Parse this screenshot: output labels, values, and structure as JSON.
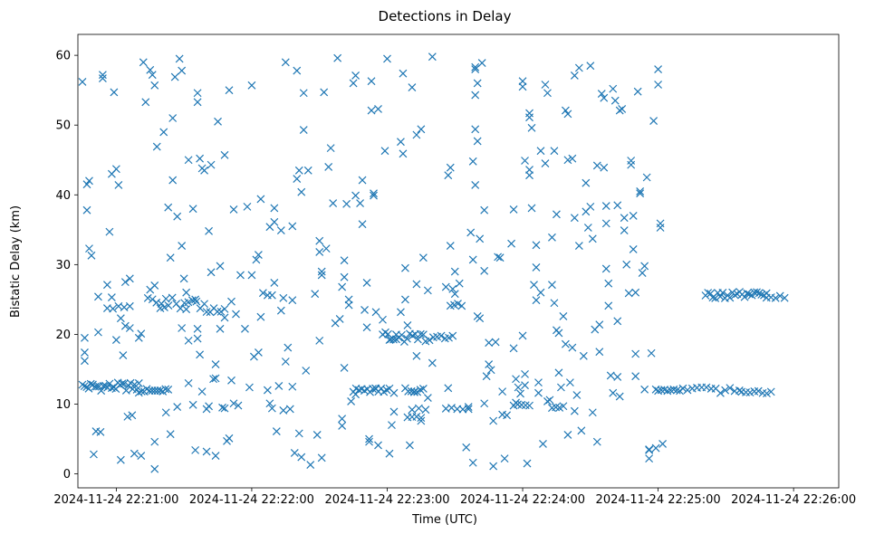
{
  "chart_data": {
    "type": "scatter",
    "title": "Detections in Delay",
    "xlabel": "Time (UTC)",
    "ylabel": "Bistatic Delay (km)",
    "marker": "x",
    "color": "#1f77b4",
    "x_unit": "seconds since 2024-11-24 22:20:00 UTC",
    "xlim": [
      43,
      380
    ],
    "ylim": [
      -2,
      63
    ],
    "xticks": [
      {
        "value": 60,
        "label": "2024-11-24 22:21:00"
      },
      {
        "value": 120,
        "label": "2024-11-24 22:22:00"
      },
      {
        "value": 180,
        "label": "2024-11-24 22:23:00"
      },
      {
        "value": 240,
        "label": "2024-11-24 22:24:00"
      },
      {
        "value": 300,
        "label": "2024-11-24 22:25:00"
      },
      {
        "value": 360,
        "label": "2024-11-24 22:26:00"
      }
    ],
    "yticks": [
      0,
      10,
      20,
      30,
      40,
      50,
      60
    ],
    "bands": [
      {
        "t0": 45,
        "t1": 70,
        "y": 12.5,
        "n": 28,
        "spread": 0.6
      },
      {
        "t0": 70,
        "t1": 83,
        "y": 11.9,
        "n": 12,
        "spread": 0.3
      },
      {
        "t0": 56,
        "t1": 66,
        "y": 23.8,
        "n": 5,
        "spread": 0.3
      },
      {
        "t0": 76,
        "t1": 99,
        "y": 24.5,
        "n": 14,
        "spread": 0.8
      },
      {
        "t0": 100,
        "t1": 108,
        "y": 23.5,
        "n": 6,
        "spread": 0.4
      },
      {
        "t0": 125,
        "t1": 129,
        "y": 25.8,
        "n": 3,
        "spread": 0.2
      },
      {
        "t0": 165,
        "t1": 181,
        "y": 12.0,
        "n": 14,
        "spread": 0.3
      },
      {
        "t0": 188,
        "t1": 196,
        "y": 12.0,
        "n": 7,
        "spread": 0.3
      },
      {
        "t0": 189,
        "t1": 195,
        "y": 8.2,
        "n": 4,
        "spread": 0.2
      },
      {
        "t0": 178,
        "t1": 196,
        "y": 19.6,
        "n": 16,
        "spread": 0.7
      },
      {
        "t0": 197,
        "t1": 209,
        "y": 19.4,
        "n": 8,
        "spread": 0.4
      },
      {
        "t0": 208,
        "t1": 213,
        "y": 24.2,
        "n": 4,
        "spread": 0.2
      },
      {
        "t0": 206,
        "t1": 216,
        "y": 9.3,
        "n": 5,
        "spread": 0.2
      },
      {
        "t0": 236,
        "t1": 243,
        "y": 9.8,
        "n": 5,
        "spread": 0.2
      },
      {
        "t0": 253,
        "t1": 258,
        "y": 9.7,
        "n": 4,
        "spread": 0.3
      },
      {
        "t0": 300,
        "t1": 311,
        "y": 12.0,
        "n": 9,
        "spread": 0.3
      },
      {
        "t0": 313,
        "t1": 336,
        "y": 11.9,
        "n": 12,
        "spread": 0.5
      },
      {
        "t0": 337,
        "t1": 350,
        "y": 11.8,
        "n": 8,
        "spread": 0.3
      },
      {
        "t0": 321,
        "t1": 348,
        "y": 25.6,
        "n": 26,
        "spread": 0.5
      },
      {
        "t0": 348,
        "t1": 356,
        "y": 25.4,
        "n": 5,
        "spread": 0.2
      }
    ],
    "points": [
      [
        45,
        56.2
      ],
      [
        46,
        17.4
      ],
      [
        46,
        16.2
      ],
      [
        47,
        37.8
      ],
      [
        47,
        41.5
      ],
      [
        48,
        42
      ],
      [
        48,
        32.3
      ],
      [
        46,
        19.5
      ],
      [
        49,
        31.3
      ],
      [
        50,
        2.8
      ],
      [
        51,
        6.1
      ],
      [
        52,
        25.4
      ],
      [
        52,
        20.3
      ],
      [
        53,
        6
      ],
      [
        54,
        57.2
      ],
      [
        54,
        56.7
      ],
      [
        56,
        27.1
      ],
      [
        57,
        34.7
      ],
      [
        58,
        43
      ],
      [
        58,
        25.3
      ],
      [
        59,
        54.7
      ],
      [
        60,
        43.7
      ],
      [
        60,
        19.2
      ],
      [
        61,
        41.4
      ],
      [
        62,
        22.3
      ],
      [
        62,
        2
      ],
      [
        63,
        17
      ],
      [
        64,
        27.5
      ],
      [
        64,
        21.2
      ],
      [
        65,
        8.2
      ],
      [
        66,
        28
      ],
      [
        66,
        20.9
      ],
      [
        67,
        8.4
      ],
      [
        68,
        2.9
      ],
      [
        70,
        19.5
      ],
      [
        71,
        20.1
      ],
      [
        71,
        2.6
      ],
      [
        72,
        59
      ],
      [
        73,
        53.3
      ],
      [
        74,
        25.2
      ],
      [
        75,
        26.4
      ],
      [
        75,
        57.9
      ],
      [
        76,
        57.2
      ],
      [
        77,
        27
      ],
      [
        77,
        55.7
      ],
      [
        77,
        4.6
      ],
      [
        77,
        0.7
      ],
      [
        78,
        46.9
      ],
      [
        80,
        24.4
      ],
      [
        81,
        49
      ],
      [
        82,
        25.1
      ],
      [
        82,
        8.8
      ],
      [
        83,
        38.2
      ],
      [
        84,
        5.7
      ],
      [
        84,
        31
      ],
      [
        85,
        42.1
      ],
      [
        85,
        51
      ],
      [
        86,
        56.9
      ],
      [
        87,
        36.9
      ],
      [
        87,
        9.6
      ],
      [
        88,
        59.5
      ],
      [
        89,
        57.8
      ],
      [
        89,
        32.7
      ],
      [
        89,
        20.9
      ],
      [
        90,
        28
      ],
      [
        91,
        26
      ],
      [
        91,
        23.6
      ],
      [
        92,
        19.1
      ],
      [
        92,
        13
      ],
      [
        92,
        45
      ],
      [
        94,
        38
      ],
      [
        94,
        9.9
      ],
      [
        95,
        25
      ],
      [
        95,
        3.4
      ],
      [
        96,
        19.4
      ],
      [
        96,
        20.8
      ],
      [
        96,
        54.6
      ],
      [
        96,
        53.3
      ],
      [
        97,
        45.2
      ],
      [
        97,
        17.1
      ],
      [
        98,
        11.8
      ],
      [
        98,
        43.8
      ],
      [
        99,
        43.5
      ],
      [
        100,
        9.3
      ],
      [
        100,
        3.2
      ],
      [
        101,
        9.7
      ],
      [
        101,
        34.8
      ],
      [
        102,
        44.3
      ],
      [
        102,
        28.9
      ],
      [
        103,
        13.6
      ],
      [
        104,
        13.7
      ],
      [
        104,
        2.6
      ],
      [
        104,
        15.7
      ],
      [
        105,
        50.5
      ],
      [
        106,
        20.8
      ],
      [
        106,
        29.8
      ],
      [
        107,
        9.5
      ],
      [
        108,
        9.4
      ],
      [
        108,
        45.7
      ],
      [
        108,
        22.4
      ],
      [
        109,
        4.7
      ],
      [
        110,
        55
      ],
      [
        110,
        5.1
      ],
      [
        111,
        24.7
      ],
      [
        111,
        13.4
      ],
      [
        112,
        10.1
      ],
      [
        112,
        37.9
      ],
      [
        113,
        22.9
      ],
      [
        114,
        9.8
      ],
      [
        115,
        28.5
      ],
      [
        117,
        20.8
      ],
      [
        118,
        38.3
      ],
      [
        119,
        12.4
      ],
      [
        120,
        28.5
      ],
      [
        120,
        55.7
      ],
      [
        121,
        16.8
      ],
      [
        122,
        30.7
      ],
      [
        123,
        17.4
      ],
      [
        123,
        31.4
      ],
      [
        124,
        22.5
      ],
      [
        124,
        39.4
      ],
      [
        127,
        12
      ],
      [
        128,
        35.4
      ],
      [
        128,
        10.1
      ],
      [
        129,
        9.4
      ],
      [
        130,
        36.1
      ],
      [
        130,
        27.4
      ],
      [
        130,
        38.1
      ],
      [
        131,
        6.1
      ],
      [
        132,
        12.6
      ],
      [
        133,
        23.4
      ],
      [
        133,
        34.9
      ],
      [
        134,
        25.2
      ],
      [
        134,
        9.1
      ],
      [
        135,
        16.1
      ],
      [
        135,
        59
      ],
      [
        136,
        18.1
      ],
      [
        137,
        9.3
      ],
      [
        138,
        24.9
      ],
      [
        138,
        12.5
      ],
      [
        138,
        35.5
      ],
      [
        139,
        3
      ],
      [
        140,
        57.8
      ],
      [
        140,
        42.3
      ],
      [
        141,
        43.5
      ],
      [
        141,
        5.8
      ],
      [
        142,
        40.4
      ],
      [
        142,
        2.4
      ],
      [
        143,
        49.3
      ],
      [
        144,
        14.8
      ],
      [
        143,
        54.6
      ],
      [
        145,
        43.5
      ],
      [
        146,
        1.3
      ],
      [
        148,
        25.8
      ],
      [
        149,
        5.6
      ],
      [
        150,
        33.4
      ],
      [
        150,
        31.8
      ],
      [
        150,
        19.1
      ],
      [
        151,
        2.3
      ],
      [
        151,
        29
      ],
      [
        151,
        28.5
      ],
      [
        152,
        54.7
      ],
      [
        153,
        32.3
      ],
      [
        154,
        44
      ],
      [
        155,
        46.7
      ],
      [
        156,
        38.8
      ],
      [
        157,
        21.6
      ],
      [
        158,
        59.6
      ],
      [
        159,
        22.2
      ],
      [
        160,
        26.8
      ],
      [
        160,
        7.9
      ],
      [
        160,
        6.9
      ],
      [
        161,
        28.2
      ],
      [
        161,
        30.6
      ],
      [
        161,
        15.2
      ],
      [
        162,
        38.7
      ],
      [
        163,
        25
      ],
      [
        163,
        24.2
      ],
      [
        164,
        10.4
      ],
      [
        165,
        56
      ],
      [
        166,
        57.1
      ],
      [
        166,
        39.9
      ],
      [
        166,
        11.4
      ],
      [
        168,
        38.8
      ],
      [
        169,
        35.8
      ],
      [
        169,
        42.1
      ],
      [
        170,
        23.5
      ],
      [
        171,
        21
      ],
      [
        171,
        27.4
      ],
      [
        172,
        4.6
      ],
      [
        172,
        5
      ],
      [
        173,
        52.1
      ],
      [
        173,
        56.3
      ],
      [
        174,
        40.2
      ],
      [
        174,
        39.9
      ],
      [
        175,
        12.2
      ],
      [
        175,
        23.2
      ],
      [
        176,
        4.1
      ],
      [
        176,
        52.3
      ],
      [
        178,
        22.1
      ],
      [
        179,
        46.3
      ],
      [
        180,
        59.5
      ],
      [
        181,
        2.9
      ],
      [
        181,
        19.2
      ],
      [
        182,
        7
      ],
      [
        183,
        8.9
      ],
      [
        183,
        11.6
      ],
      [
        184,
        19.3
      ],
      [
        186,
        47.6
      ],
      [
        186,
        23.2
      ],
      [
        187,
        57.4
      ],
      [
        187,
        45.9
      ],
      [
        188,
        25
      ],
      [
        188,
        29.5
      ],
      [
        189,
        21.3
      ],
      [
        190,
        4.1
      ],
      [
        191,
        9.2
      ],
      [
        191,
        55.4
      ],
      [
        192,
        11.8
      ],
      [
        193,
        16.9
      ],
      [
        193,
        27.2
      ],
      [
        193,
        48.6
      ],
      [
        194,
        9.4
      ],
      [
        195,
        7.6
      ],
      [
        195,
        49.4
      ],
      [
        196,
        31
      ],
      [
        197,
        9.2
      ],
      [
        198,
        10.9
      ],
      [
        198,
        26.3
      ],
      [
        200,
        15.9
      ],
      [
        200,
        59.8
      ],
      [
        206,
        26.8
      ],
      [
        207,
        12.3
      ],
      [
        207,
        42.8
      ],
      [
        208,
        43.9
      ],
      [
        208,
        32.7
      ],
      [
        209,
        26.5
      ],
      [
        210,
        29
      ],
      [
        210,
        25.8
      ],
      [
        212,
        27.3
      ],
      [
        215,
        3.8
      ],
      [
        216,
        9.6
      ],
      [
        217,
        34.6
      ],
      [
        218,
        30.7
      ],
      [
        218,
        44.8
      ],
      [
        218,
        1.6
      ],
      [
        219,
        58.3
      ],
      [
        219,
        58
      ],
      [
        219,
        54.3
      ],
      [
        219,
        41.4
      ],
      [
        219,
        49.4
      ],
      [
        220,
        56
      ],
      [
        220,
        47.7
      ],
      [
        220,
        22.6
      ],
      [
        221,
        33.7
      ],
      [
        221,
        22.3
      ],
      [
        222,
        58.9
      ],
      [
        223,
        37.8
      ],
      [
        223,
        29.1
      ],
      [
        223,
        10.1
      ],
      [
        224,
        14
      ],
      [
        225,
        18.8
      ],
      [
        225,
        15.7
      ],
      [
        226,
        14.9
      ],
      [
        227,
        7.6
      ],
      [
        227,
        1.1
      ],
      [
        228,
        18.9
      ],
      [
        229,
        31.1
      ],
      [
        230,
        31
      ],
      [
        231,
        8.5
      ],
      [
        231,
        11.8
      ],
      [
        232,
        2.2
      ],
      [
        233,
        8.4
      ],
      [
        235,
        33
      ],
      [
        236,
        18
      ],
      [
        236,
        37.9
      ],
      [
        237,
        10.2
      ],
      [
        237,
        13.6
      ],
      [
        238,
        12.4
      ],
      [
        239,
        11.5
      ],
      [
        240,
        56.3
      ],
      [
        240,
        55.5
      ],
      [
        240,
        19.8
      ],
      [
        241,
        44.9
      ],
      [
        241,
        14.3
      ],
      [
        241,
        12.7
      ],
      [
        242,
        1.5
      ],
      [
        243,
        43.6
      ],
      [
        243,
        42.8
      ],
      [
        243,
        51.7
      ],
      [
        243,
        51.1
      ],
      [
        244,
        49.6
      ],
      [
        244,
        38.1
      ],
      [
        245,
        27.1
      ],
      [
        246,
        32.8
      ],
      [
        246,
        29.6
      ],
      [
        246,
        24.9
      ],
      [
        247,
        11.6
      ],
      [
        247,
        13.1
      ],
      [
        248,
        46.3
      ],
      [
        248,
        26
      ],
      [
        249,
        4.3
      ],
      [
        250,
        44.5
      ],
      [
        250,
        55.8
      ],
      [
        251,
        54.6
      ],
      [
        251,
        10.4
      ],
      [
        252,
        10.6
      ],
      [
        253,
        33.9
      ],
      [
        253,
        27.1
      ],
      [
        254,
        46.3
      ],
      [
        254,
        24.5
      ],
      [
        255,
        20.6
      ],
      [
        255,
        37.2
      ],
      [
        256,
        14.5
      ],
      [
        256,
        20.2
      ],
      [
        257,
        12.4
      ],
      [
        258,
        22.6
      ],
      [
        259,
        18.6
      ],
      [
        259,
        52.1
      ],
      [
        260,
        51.6
      ],
      [
        260,
        45
      ],
      [
        260,
        5.6
      ],
      [
        261,
        13.1
      ],
      [
        262,
        18.1
      ],
      [
        262,
        45.2
      ],
      [
        263,
        57.1
      ],
      [
        263,
        36.7
      ],
      [
        263,
        9
      ],
      [
        264,
        11.3
      ],
      [
        265,
        58.2
      ],
      [
        265,
        32.7
      ],
      [
        266,
        6.2
      ],
      [
        267,
        16.9
      ],
      [
        268,
        41.7
      ],
      [
        268,
        37.6
      ],
      [
        269,
        35.3
      ],
      [
        270,
        38.3
      ],
      [
        270,
        58.5
      ],
      [
        271,
        33.7
      ],
      [
        271,
        8.8
      ],
      [
        272,
        20.7
      ],
      [
        273,
        44.2
      ],
      [
        273,
        4.6
      ],
      [
        274,
        17.5
      ],
      [
        274,
        21.4
      ],
      [
        275,
        54.5
      ],
      [
        276,
        53.9
      ],
      [
        276,
        43.9
      ],
      [
        277,
        38.4
      ],
      [
        277,
        35.9
      ],
      [
        277,
        29.4
      ],
      [
        278,
        24.1
      ],
      [
        278,
        27.3
      ],
      [
        279,
        14.1
      ],
      [
        280,
        11.6
      ],
      [
        280,
        55.2
      ],
      [
        281,
        53.5
      ],
      [
        282,
        38.5
      ],
      [
        282,
        21.9
      ],
      [
        282,
        13.9
      ],
      [
        283,
        11.1
      ],
      [
        283,
        52.1
      ],
      [
        284,
        52.3
      ],
      [
        285,
        36.7
      ],
      [
        285,
        34.9
      ],
      [
        286,
        30
      ],
      [
        287,
        25.9
      ],
      [
        288,
        44.3
      ],
      [
        288,
        44.9
      ],
      [
        289,
        37
      ],
      [
        289,
        32.2
      ],
      [
        290,
        26
      ],
      [
        290,
        17.2
      ],
      [
        290,
        14
      ],
      [
        291,
        54.8
      ],
      [
        292,
        40.5
      ],
      [
        292,
        40.2
      ],
      [
        293,
        28.8
      ],
      [
        294,
        29.8
      ],
      [
        294,
        12.1
      ],
      [
        295,
        42.5
      ],
      [
        296,
        3.5
      ],
      [
        296,
        2.2
      ],
      [
        296,
        3.4
      ],
      [
        297,
        17.3
      ],
      [
        298,
        50.6
      ],
      [
        299,
        12.1
      ],
      [
        299,
        3.7
      ],
      [
        300,
        58
      ],
      [
        300,
        55.8
      ],
      [
        301,
        35.3
      ],
      [
        301,
        35.9
      ],
      [
        302,
        4.3
      ]
    ]
  }
}
